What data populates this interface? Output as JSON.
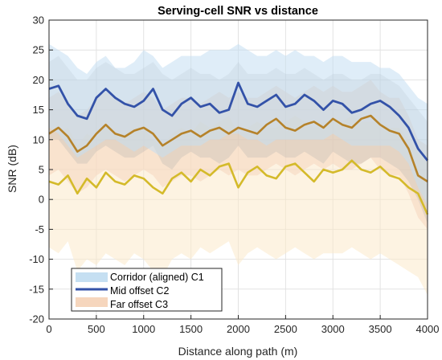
{
  "chart_data": {
    "type": "line",
    "title": "Serving-cell SNR vs distance",
    "xlabel": "Distance along path (m)",
    "ylabel": "SNR (dB)",
    "xlim": [
      0,
      4000
    ],
    "ylim": [
      -20,
      30
    ],
    "xticks": [
      "0",
      "500",
      "1000",
      "1500",
      "2000",
      "2500",
      "3000",
      "3500",
      "4000"
    ],
    "yticks": [
      "30",
      "25",
      "20",
      "15",
      "10",
      "5",
      "0",
      "-5",
      "-10",
      "-15",
      "-20"
    ],
    "grid": true,
    "legend_position": "bottom-left",
    "x": [
      0,
      100,
      200,
      300,
      400,
      500,
      600,
      700,
      800,
      900,
      1000,
      1100,
      1200,
      1300,
      1400,
      1500,
      1600,
      1700,
      1800,
      1900,
      2000,
      2100,
      2200,
      2300,
      2400,
      2500,
      2600,
      2700,
      2800,
      2900,
      3000,
      3100,
      3200,
      3300,
      3400,
      3500,
      3600,
      3700,
      3800,
      3900,
      4000
    ],
    "series": [
      {
        "name": "Corridor (aligned) C1",
        "style": "band",
        "color": "#c5dff2",
        "lower": [
          12,
          11,
          9,
          7,
          8,
          9,
          10,
          10,
          9,
          8,
          9,
          8,
          7,
          8,
          9,
          9,
          9,
          10,
          10,
          11,
          11,
          10,
          10,
          9,
          10,
          10,
          10,
          10,
          10,
          10,
          11,
          10,
          9,
          9,
          9,
          9,
          9,
          8,
          6,
          2,
          -1
        ],
        "upper": [
          26,
          25,
          24,
          22,
          21,
          23,
          24,
          22,
          22,
          23,
          25,
          24,
          22,
          23,
          24,
          24,
          24,
          25,
          25,
          25,
          26,
          25,
          24,
          24,
          25,
          24,
          25,
          24,
          24,
          23,
          24,
          24,
          23,
          23,
          23,
          22,
          22,
          21,
          19,
          17,
          16
        ]
      },
      {
        "name": "Mid offset C2",
        "style": "line",
        "color": "#3352a8",
        "values": [
          18.5,
          19.0,
          16.0,
          14.0,
          13.5,
          17.0,
          18.5,
          17.0,
          16.0,
          15.5,
          16.5,
          18.5,
          15.0,
          14.0,
          16.0,
          17.0,
          15.5,
          16.0,
          14.5,
          15.0,
          19.5,
          16.0,
          15.5,
          16.5,
          17.5,
          15.5,
          16.0,
          17.5,
          16.5,
          15.0,
          16.5,
          16.0,
          14.5,
          15.0,
          16.0,
          16.5,
          15.5,
          14.0,
          12.0,
          8.5,
          6.5
        ],
        "band_color": "#a8a8a8",
        "band_lower": [
          10,
          10,
          8,
          6,
          6,
          8,
          9,
          8,
          7,
          7,
          8,
          9,
          6,
          5,
          7,
          8,
          7,
          7,
          6,
          7,
          9,
          7,
          7,
          7,
          8,
          7,
          7,
          8,
          7,
          6,
          8,
          7,
          6,
          6,
          7,
          7,
          6,
          5,
          3,
          0,
          -4
        ],
        "band_upper": [
          23,
          24,
          22,
          20,
          20,
          22,
          23,
          22,
          21,
          21,
          22,
          23,
          21,
          20,
          21,
          22,
          21,
          21,
          20,
          21,
          23,
          21,
          21,
          21,
          22,
          21,
          21,
          22,
          21,
          20,
          21,
          21,
          20,
          20,
          21,
          21,
          20,
          19,
          17,
          15,
          13
        ]
      },
      {
        "name": "Far offset C3",
        "style": "band+line",
        "color": "#b5822a",
        "band_color": "#f6d6bd",
        "values": [
          11.0,
          12.0,
          10.5,
          8.0,
          9.0,
          11.0,
          12.5,
          11.0,
          10.5,
          11.5,
          12.0,
          11.0,
          9.0,
          10.0,
          11.0,
          11.5,
          10.5,
          11.5,
          12.0,
          11.0,
          12.0,
          11.5,
          11.0,
          12.5,
          13.5,
          12.0,
          11.5,
          12.5,
          13.0,
          12.0,
          13.5,
          12.5,
          12.0,
          13.5,
          14.0,
          12.5,
          11.5,
          11.0,
          8.5,
          4.0,
          3.0
        ],
        "band_lower": [
          4,
          5,
          3,
          1,
          2,
          4,
          5,
          4,
          3,
          4,
          5,
          4,
          2,
          3,
          4,
          4,
          3,
          4,
          5,
          4,
          5,
          4,
          4,
          5,
          6,
          5,
          4,
          5,
          6,
          5,
          6,
          5,
          5,
          6,
          7,
          5,
          4,
          4,
          1,
          -3,
          -5
        ],
        "band_upper": [
          17,
          18,
          16,
          14,
          15,
          17,
          18,
          17,
          16,
          17,
          18,
          17,
          15,
          16,
          17,
          17,
          16,
          17,
          18,
          17,
          18,
          17,
          17,
          18,
          19,
          18,
          17,
          18,
          19,
          18,
          19,
          18,
          18,
          19,
          20,
          18,
          17,
          17,
          14,
          10,
          9
        ]
      },
      {
        "name": "",
        "style": "band+line",
        "color": "#d4ba2a",
        "band_color": "#fbe9ca",
        "values": [
          3.0,
          2.5,
          4.0,
          1.0,
          3.5,
          2.0,
          4.5,
          3.0,
          2.5,
          4.0,
          3.5,
          2.0,
          1.0,
          3.5,
          4.5,
          3.0,
          5.0,
          4.0,
          5.5,
          6.0,
          2.0,
          4.5,
          5.5,
          4.0,
          3.5,
          5.5,
          6.0,
          4.5,
          3.0,
          5.0,
          4.5,
          5.0,
          6.5,
          5.0,
          4.5,
          5.5,
          4.0,
          3.5,
          2.0,
          1.0,
          -2.5
        ],
        "band_lower": [
          -8,
          -9,
          -7,
          -12,
          -10,
          -11,
          -9,
          -10,
          -11,
          -9,
          -10,
          -12,
          -13,
          -10,
          -9,
          -10,
          -8,
          -9,
          -8,
          -7,
          -11,
          -9,
          -8,
          -9,
          -10,
          -9,
          -8,
          -9,
          -10,
          -9,
          -9,
          -9,
          -8,
          -9,
          -10,
          -9,
          -10,
          -11,
          -12,
          -13,
          -16
        ],
        "band_upper": [
          12,
          11,
          12,
          9,
          11,
          10,
          13,
          11,
          11,
          12,
          12,
          10,
          9,
          11,
          12,
          11,
          13,
          12,
          13,
          14,
          11,
          12,
          13,
          12,
          12,
          13,
          14,
          13,
          12,
          13,
          13,
          13,
          14,
          13,
          13,
          13,
          12,
          12,
          10,
          8,
          6
        ]
      }
    ]
  }
}
